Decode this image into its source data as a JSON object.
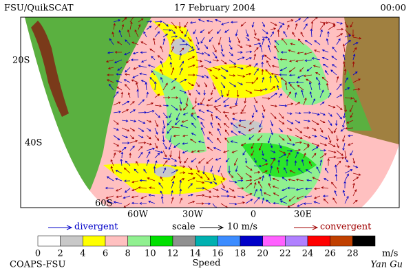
{
  "header": {
    "left": "FSU/QuikSCAT",
    "center": "17 February 2004",
    "right": "00:00"
  },
  "map": {
    "lat_labels": [
      "20S",
      "40S",
      "60S"
    ],
    "lon_labels": [
      "60W",
      "30W",
      "0",
      "30E"
    ]
  },
  "legend": {
    "divergent": "divergent",
    "scale": "scale",
    "scale_value": "10 m/s",
    "convergent": "convergent"
  },
  "colorbar": {
    "colors": [
      "#ffffff",
      "#c8c8c8",
      "#ffff00",
      "#ffc0c0",
      "#90f090",
      "#00e000",
      "#909090",
      "#00b0b0",
      "#3c8cff",
      "#0000c8",
      "#ff60ff",
      "#b080ff",
      "#ff0000",
      "#c04000",
      "#000000"
    ],
    "labels": [
      "0",
      "2",
      "4",
      "6",
      "8",
      "10",
      "12",
      "14",
      "16",
      "18",
      "20",
      "22",
      "24",
      "26",
      "28"
    ],
    "unit": "m/s",
    "title": "Speed"
  },
  "footer": {
    "left": "COAPS-FSU",
    "right": "Yan Gu"
  }
}
